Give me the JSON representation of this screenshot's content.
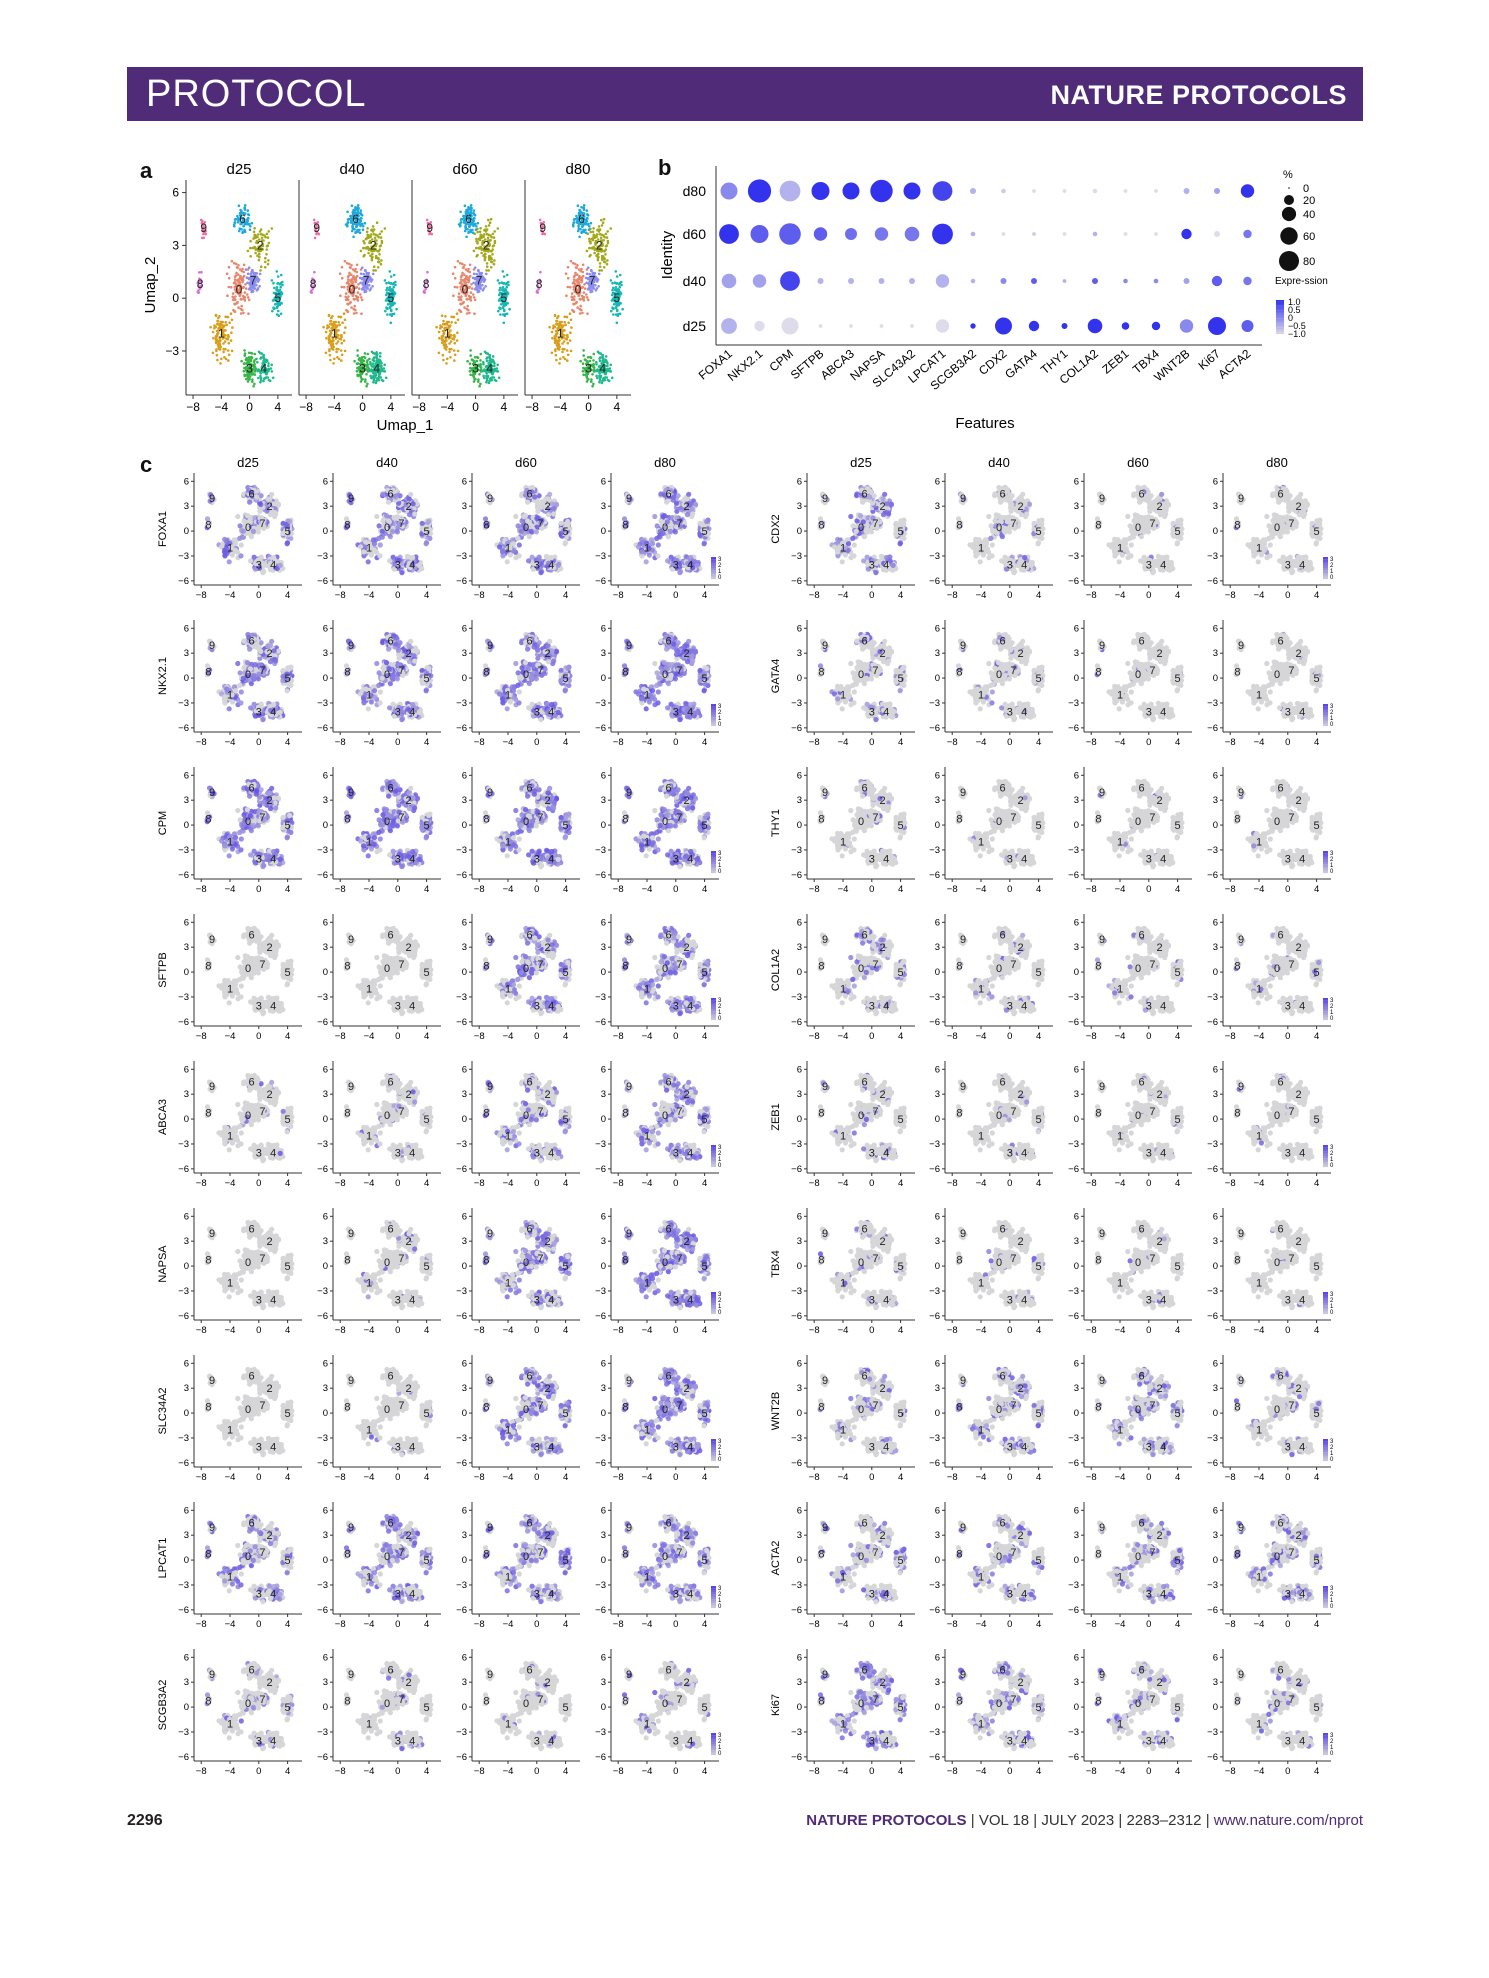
{
  "header": {
    "left": "PROTOCOL",
    "right": "NATURE PROTOCOLS"
  },
  "panels": {
    "a": "a",
    "b": "b",
    "c": "c"
  },
  "panel_a": {
    "days": [
      "d25",
      "d40",
      "d60",
      "d80"
    ],
    "xlabel": "Umap_1",
    "ylabel": "Umap_2",
    "x_ticks": [
      "−8",
      "−4",
      "0",
      "4"
    ],
    "y_ticks": [
      "6",
      "3",
      "0",
      "−3"
    ],
    "clusters": [
      "0",
      "1",
      "2",
      "3",
      "4",
      "5",
      "6",
      "7",
      "8",
      "9"
    ],
    "cluster_colors": [
      "#e8866c",
      "#d89e1c",
      "#a4a81c",
      "#39b54a",
      "#1fb98c",
      "#17b7b4",
      "#1ea9dc",
      "#8a8cf0",
      "#d86fd8",
      "#ef6fa8"
    ]
  },
  "chart_data": {
    "type": "scatter",
    "title": "",
    "xlabel": "Features",
    "ylabel": "Identity",
    "categories": [
      "FOXA1",
      "NKX2.1",
      "CPM",
      "SFTPB",
      "ABCA3",
      "NAPSA",
      "SLC43A2",
      "LPCAT1",
      "SCGB3A2",
      "CDX2",
      "GATA4",
      "THY1",
      "COL1A2",
      "ZEB1",
      "TBX4",
      "WNT2B",
      "Ki67",
      "ACTA2"
    ],
    "identities": [
      "d80",
      "d60",
      "d40",
      "d25"
    ],
    "percent_expressed": [
      [
        40,
        75,
        60,
        45,
        40,
        70,
        40,
        55,
        5,
        3,
        2,
        2,
        3,
        2,
        2,
        5,
        5,
        25
      ],
      [
        55,
        45,
        65,
        25,
        20,
        25,
        30,
        60,
        3,
        2,
        2,
        2,
        3,
        2,
        2,
        15,
        5,
        10
      ],
      [
        30,
        25,
        55,
        5,
        5,
        5,
        5,
        25,
        3,
        5,
        5,
        2,
        5,
        3,
        3,
        5,
        15,
        10
      ],
      [
        35,
        15,
        40,
        2,
        2,
        2,
        2,
        25,
        4,
        40,
        15,
        5,
        30,
        8,
        10,
        25,
        45,
        20
      ]
    ],
    "avg_expression": [
      [
        0.0,
        1.0,
        -0.5,
        1.0,
        1.0,
        1.0,
        1.0,
        0.8,
        -0.5,
        -0.8,
        -1.0,
        -1.0,
        -1.0,
        -1.0,
        -1.0,
        -0.5,
        -0.3,
        1.0
      ],
      [
        1.0,
        0.5,
        0.5,
        0.5,
        0.3,
        0.2,
        0.2,
        1.0,
        -0.5,
        -1.0,
        -0.8,
        -1.0,
        -0.5,
        -1.0,
        -1.0,
        1.0,
        -1.0,
        0.2
      ],
      [
        -0.3,
        -0.3,
        0.8,
        -0.5,
        -0.5,
        -0.5,
        -0.5,
        -0.5,
        -0.5,
        0.0,
        0.5,
        -0.5,
        0.5,
        0.0,
        0.0,
        -0.3,
        0.5,
        0.2
      ],
      [
        -0.5,
        -1.0,
        -1.0,
        -1.0,
        -1.0,
        -1.0,
        -1.0,
        -1.0,
        1.0,
        1.0,
        1.0,
        1.0,
        1.0,
        1.0,
        1.0,
        0.0,
        1.0,
        0.5
      ]
    ],
    "size_legend": {
      "title": "%",
      "values": [
        "0",
        "20",
        "40",
        "60",
        "80"
      ]
    },
    "color_legend": {
      "title": "Expre-ssion",
      "values": [
        "1.0",
        "0.5",
        "0",
        "−0.5",
        "−1.0"
      ]
    }
  },
  "panel_c": {
    "days": [
      "d25",
      "d40",
      "d60",
      "d80"
    ],
    "left_genes": [
      "FOXA1",
      "NKX2.1",
      "CPM",
      "SFTPB",
      "ABCA3",
      "NAPSA",
      "SLC34A2",
      "LPCAT1",
      "SCGB3A2"
    ],
    "right_genes": [
      "CDX2",
      "GATA4",
      "THY1",
      "COL1A2",
      "ZEB1",
      "TBX4",
      "WNT2B",
      "ACTA2",
      "Ki67"
    ],
    "x_ticks": [
      "−8",
      "−4",
      "0",
      "4"
    ],
    "y_ticks": [
      "6",
      "3",
      "0",
      "−3",
      "−6"
    ],
    "cluster_labels": [
      "0",
      "1",
      "2",
      "3",
      "4",
      "5",
      "6",
      "7",
      "8",
      "9"
    ],
    "intensity_left": [
      [
        0.45,
        0.5,
        0.5,
        0.65
      ],
      [
        0.55,
        0.6,
        0.7,
        0.85
      ],
      [
        0.75,
        0.75,
        0.7,
        0.7
      ],
      [
        0.0,
        0.0,
        0.45,
        0.6
      ],
      [
        0.05,
        0.1,
        0.35,
        0.45
      ],
      [
        0.0,
        0.1,
        0.55,
        0.8
      ],
      [
        0.0,
        0.02,
        0.5,
        0.7
      ],
      [
        0.35,
        0.45,
        0.5,
        0.5
      ],
      [
        0.15,
        0.08,
        0.05,
        0.12
      ]
    ],
    "intensity_right": [
      [
        0.35,
        0.12,
        0.03,
        0.02
      ],
      [
        0.18,
        0.12,
        0.03,
        0.02
      ],
      [
        0.05,
        0.02,
        0.02,
        0.02
      ],
      [
        0.25,
        0.1,
        0.08,
        0.06
      ],
      [
        0.12,
        0.05,
        0.04,
        0.03
      ],
      [
        0.1,
        0.03,
        0.02,
        0.02
      ],
      [
        0.15,
        0.3,
        0.3,
        0.15
      ],
      [
        0.25,
        0.25,
        0.25,
        0.3
      ],
      [
        0.45,
        0.3,
        0.15,
        0.12
      ]
    ],
    "legend_ticks": [
      "3",
      "2",
      "1",
      "0"
    ]
  },
  "footer": {
    "page": "2296",
    "journal": "NATURE PROTOCOLS",
    "vol": "VOL 18",
    "date": "JULY 2023",
    "pages": "2283–2312",
    "url": "www.nature.com/nprot"
  }
}
